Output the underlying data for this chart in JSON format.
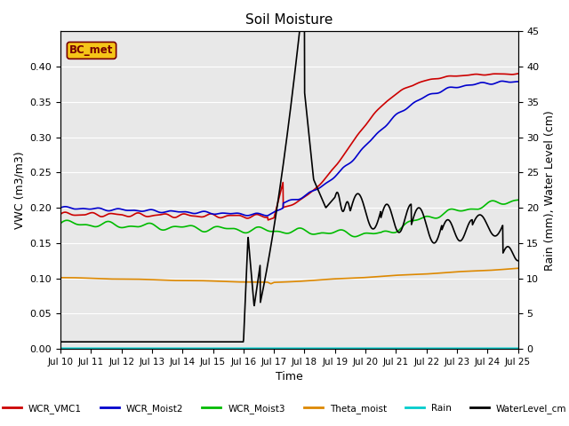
{
  "title": "Soil Moisture",
  "ylabel_left": "VWC (m3/m3)",
  "ylabel_right": "Rain (mm), Water Level (cm)",
  "xlabel": "Time",
  "ylim_left": [
    0.0,
    0.45
  ],
  "ylim_right": [
    0,
    45
  ],
  "x_tick_labels": [
    "Jul 10",
    "Jul 11",
    "Jul 12",
    "Jul 13",
    "Jul 14",
    "Jul 15",
    "Jul 16",
    "Jul 17",
    "Jul 18",
    "Jul 19",
    "Jul 20",
    "Jul 21",
    "Jul 22",
    "Jul 23",
    "Jul 24",
    "Jul 25"
  ],
  "background_color": "#e8e8e8",
  "legend_label": "BC_met",
  "series": {
    "WCR_VMC1": {
      "color": "#cc0000",
      "linewidth": 1.2
    },
    "WCR_Moist2": {
      "color": "#0000cc",
      "linewidth": 1.2
    },
    "WCR_Moist3": {
      "color": "#00bb00",
      "linewidth": 1.2
    },
    "Theta_moist": {
      "color": "#dd8800",
      "linewidth": 1.2
    },
    "Rain": {
      "color": "#00cccc",
      "linewidth": 1.2
    },
    "WaterLevel_cm": {
      "color": "#000000",
      "linewidth": 1.2
    }
  },
  "yticks_left": [
    0.0,
    0.05,
    0.1,
    0.15,
    0.2,
    0.25,
    0.3,
    0.35,
    0.4
  ],
  "yticks_right": [
    0,
    5,
    10,
    15,
    20,
    25,
    30,
    35,
    40,
    45
  ],
  "figsize": [
    6.4,
    4.8
  ],
  "dpi": 100
}
